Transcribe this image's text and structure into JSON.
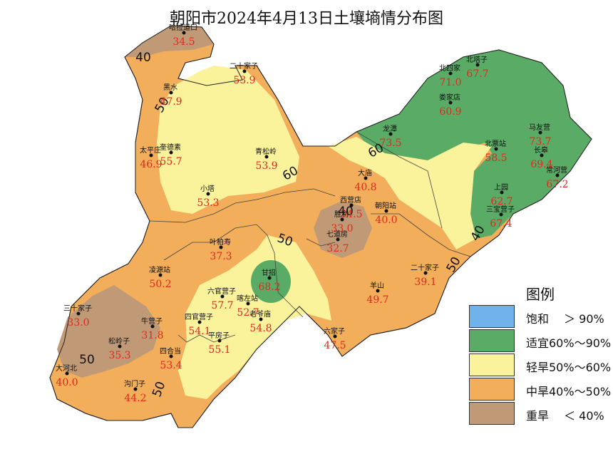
{
  "title": "朝阳市2024年4月13日土壤墒情分布图",
  "legend": {
    "title": "图例",
    "items": [
      {
        "label": "饱和　 ＞ 90%",
        "color": "#6fb2ec"
      },
      {
        "label": "适宜60%～90%",
        "color": "#5aab66"
      },
      {
        "label": "轻旱50%～60%",
        "color": "#fbf39c"
      },
      {
        "label": "中旱40%～50%",
        "color": "#f2ae5a"
      },
      {
        "label": "重旱 　＜ 40%",
        "color": "#c09a76"
      }
    ]
  },
  "isolines": [
    "40",
    "50",
    "60",
    "50",
    "50",
    "40",
    "60",
    "50",
    "50",
    "40",
    "50",
    "60"
  ],
  "stations": [
    {
      "name": "哈拉道口",
      "value": "34.5"
    },
    {
      "name": "二十家子",
      "value": "53.9"
    },
    {
      "name": "黑水",
      "value": "47.9"
    },
    {
      "name": "奎德素",
      "value": "55.7"
    },
    {
      "name": "太平庄",
      "value": "46.9"
    },
    {
      "name": "青松岭",
      "value": "53.9"
    },
    {
      "name": "小塔",
      "value": "53.3"
    },
    {
      "name": "叶柏寿",
      "value": "37.3"
    },
    {
      "name": "凌源站",
      "value": "50.2"
    },
    {
      "name": "六官营子",
      "value": "57.7"
    },
    {
      "name": "喀左站",
      "value": "52.7"
    },
    {
      "name": "四官营子",
      "value": "54.1"
    },
    {
      "name": "老爷庙",
      "value": "54.8"
    },
    {
      "name": "平房子",
      "value": "55.1"
    },
    {
      "name": "甘招",
      "value": "68.2"
    },
    {
      "name": "三十家子",
      "value": "33.0"
    },
    {
      "name": "牛营子",
      "value": "31.8"
    },
    {
      "name": "松岭子",
      "value": "35.3"
    },
    {
      "name": "四合当",
      "value": "53.4"
    },
    {
      "name": "大河北",
      "value": "40.0"
    },
    {
      "name": "沟门子",
      "value": "44.2"
    },
    {
      "name": "大庙",
      "value": "40.8"
    },
    {
      "name": "西营店",
      "value": "34.5"
    },
    {
      "name": "朝阳站",
      "value": "40.0"
    },
    {
      "name": "胜利",
      "value": "33.0"
    },
    {
      "name": "七道房",
      "value": "32.7"
    },
    {
      "name": "二十家子",
      "value": "39.1"
    },
    {
      "name": "羊山",
      "value": "49.7"
    },
    {
      "name": "六家子",
      "value": "47.5"
    },
    {
      "name": "北四家",
      "value": "71.0"
    },
    {
      "name": "北塔子",
      "value": "67.7"
    },
    {
      "name": "娄家店",
      "value": "60.9"
    },
    {
      "name": "龙潭",
      "value": "73.5"
    },
    {
      "name": "马友营",
      "value": "73.7"
    },
    {
      "name": "北票站",
      "value": "58.5"
    },
    {
      "name": "长皋",
      "value": "69.4"
    },
    {
      "name": "常河营",
      "value": "67.2"
    },
    {
      "name": "上园",
      "value": "62.7"
    },
    {
      "name": "三宝营子",
      "value": "67.4"
    }
  ]
}
